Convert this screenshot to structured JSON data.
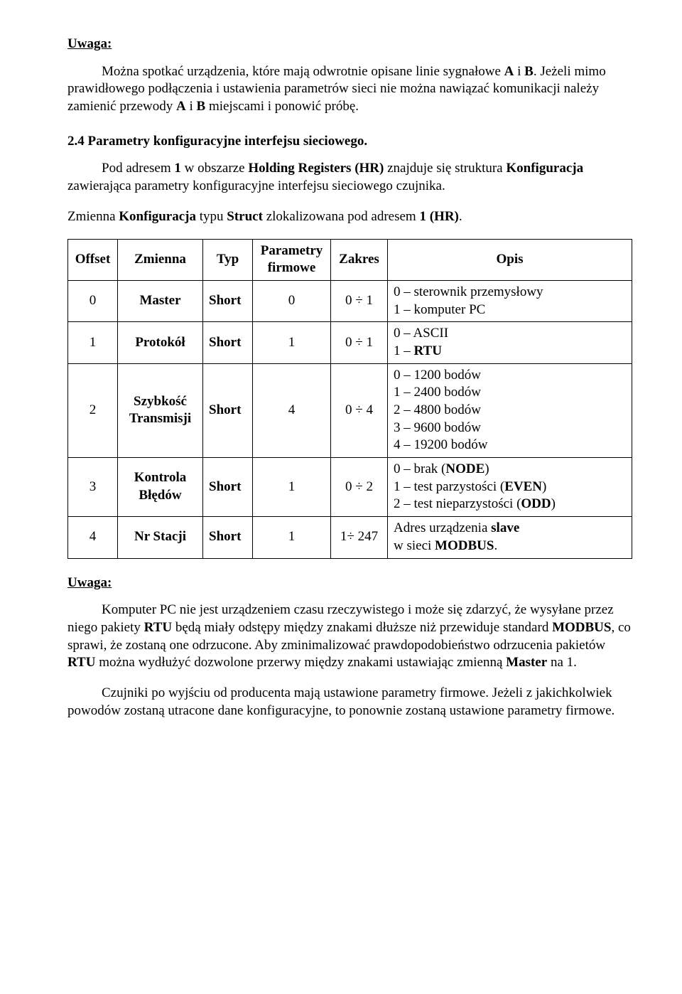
{
  "uwaga1": {
    "label": "Uwaga:",
    "p1a": "Można spotkać urządzenia, które mają odwrotnie opisane linie sygnałowe ",
    "p1b": "A",
    "p1c": " i ",
    "p1d": "B",
    "p1e": ". Jeżeli mimo prawidłowego podłączenia i ustawienia parametrów sieci nie można nawiązać komunikacji należy zamienić przewody ",
    "p1f": "A",
    "p1g": " i ",
    "p1h": "B",
    "p1i": " miejscami i ponowić próbę."
  },
  "section24": {
    "heading": "2.4   Parametry konfiguracyjne interfejsu sieciowego.",
    "p1a": "Pod adresem ",
    "p1b": "1",
    "p1c": " w obszarze ",
    "p1d": "Holding Registers (HR)",
    "p1e": " znajduje się struktura ",
    "p1f": "Konfiguracja",
    "p1g": " zawierająca parametry konfiguracyjne interfejsu sieciowego czujnika.",
    "p2a": "Zmienna ",
    "p2b": "Konfiguracja",
    "p2c": " typu ",
    "p2d": "Struct",
    "p2e": " zlokalizowana pod adresem ",
    "p2f": "1 (HR)",
    "p2g": "."
  },
  "table": {
    "columns": {
      "offset": "Offset",
      "zmienna": "Zmienna",
      "typ": "Typ",
      "param": "Parametry\nfirmowe",
      "zakres": "Zakres",
      "opis": "Opis"
    },
    "col_widths": [
      "70px",
      "120px",
      "70px",
      "110px",
      "80px",
      "auto"
    ],
    "rows": [
      {
        "offset": "0",
        "zmienna": "Master",
        "typ": "Short",
        "param": "0",
        "zakres": "0 ÷ 1",
        "opis": "0 – sterownik przemysłowy<br>1 – komputer PC"
      },
      {
        "offset": "1",
        "zmienna": "Protokół",
        "typ": "Short",
        "param": "1",
        "zakres": "0 ÷ 1",
        "opis": "0 – ASCII<br>1 – <strong>RTU</strong>"
      },
      {
        "offset": "2",
        "zmienna": "Szybkość\nTransmisji",
        "typ": "Short",
        "param": "4",
        "zakres": "0 ÷ 4",
        "opis": "0 – 1200 bodów<br>1 – 2400 bodów<br>2 – 4800 bodów<br>3 – 9600 bodów<br>4 – 19200 bodów"
      },
      {
        "offset": "3",
        "zmienna": "Kontrola\nBłędów",
        "typ": "Short",
        "param": "1",
        "zakres": "0 ÷ 2",
        "opis": "0 – brak (<strong>NODE</strong>)<br>1 – test parzystości (<strong>EVEN</strong>)<br>2 – test nieparzystości (<strong>ODD</strong>)"
      },
      {
        "offset": "4",
        "zmienna": "Nr Stacji",
        "typ": "Short",
        "param": "1",
        "zakres": "1÷ 247",
        "opis": "Adres urządzenia <strong>slave</strong><br>w sieci <strong>MODBUS</strong>."
      }
    ]
  },
  "uwaga2": {
    "label": "Uwaga:",
    "p1a": "Komputer PC nie jest urządzeniem czasu rzeczywistego i może się zdarzyć, że wysyłane przez niego pakiety ",
    "p1b": "RTU",
    "p1c": " będą miały odstępy między znakami dłuższe niż przewiduje standard ",
    "p1d": "MODBUS",
    "p1e": ", co sprawi, że zostaną one odrzucone. Aby zminimalizować prawdopodobieństwo odrzucenia pakietów ",
    "p1f": "RTU",
    "p1g": " można wydłużyć dozwolone przerwy między znakami ustawiając zmienną ",
    "p1h": "Master",
    "p1i": " na 1.",
    "p2a": "Czujniki po wyjściu od producenta mają ustawione parametry firmowe. Jeżeli z jakichkolwiek powodów zostaną utracone dane konfiguracyjne, to ponownie zostaną ustawione parametry firmowe."
  }
}
